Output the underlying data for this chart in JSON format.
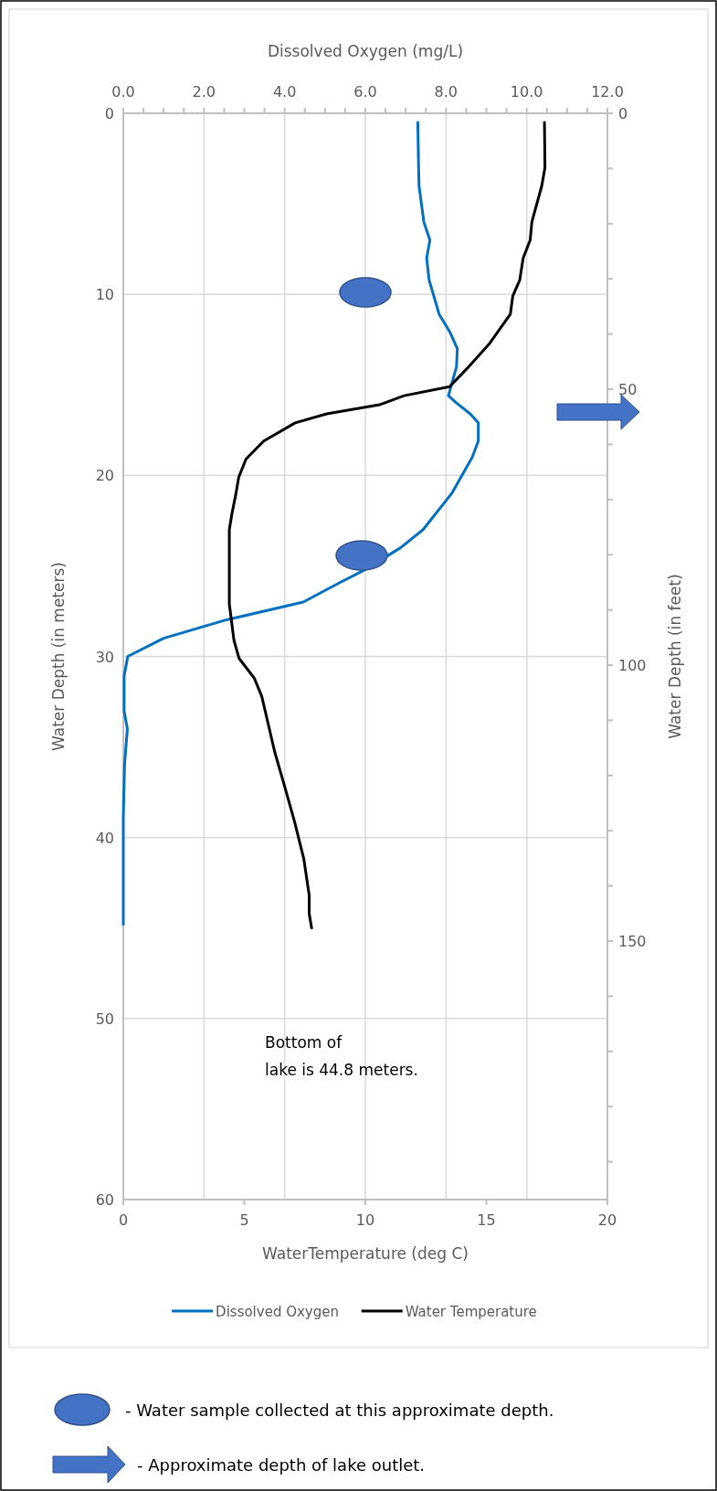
{
  "chart_data": {
    "type": "line",
    "orientation": "horizontal",
    "x2label": "Dissolved Oxygen (mg/L)",
    "xlabel": "WaterTemperature (deg C)",
    "ylabel": "Water Depth (in meters)",
    "y2label": "Water Depth (in feet)",
    "xlim": [
      0,
      20
    ],
    "xticks": [
      0,
      5,
      10,
      15,
      20
    ],
    "x2lim": [
      0,
      12
    ],
    "x2ticks": [
      "0.0",
      {
        "value": 0.5,
        "label": null
      },
      {
        "value": 1,
        "label": null
      },
      {
        "value": 1.5,
        "label": null
      },
      {
        "value": 2,
        "label": "2.0"
      },
      {
        "value": 2.5,
        "label": null
      },
      {
        "value": 3,
        "label": null
      },
      {
        "value": 3.5,
        "label": null
      },
      {
        "value": 4,
        "label": "4.0"
      },
      {
        "value": 4.5,
        "label": null
      },
      {
        "value": 5,
        "label": null
      },
      {
        "value": 5.5,
        "label": null
      },
      {
        "value": 6,
        "label": "6.0"
      },
      {
        "value": 6.5,
        "label": null
      },
      {
        "value": 7,
        "label": null
      },
      {
        "value": 7.5,
        "label": null
      },
      {
        "value": 8,
        "label": "8.0"
      },
      {
        "value": 8.5,
        "label": null
      },
      {
        "value": 9,
        "label": null
      },
      {
        "value": 9.5,
        "label": null
      },
      {
        "value": 10,
        "label": "10.0"
      },
      {
        "value": 10.5,
        "label": null
      },
      {
        "value": 11,
        "label": null
      },
      {
        "value": 11.5,
        "label": null
      },
      {
        "value": 12,
        "label": "12.0"
      }
    ],
    "ylim": [
      60,
      0
    ],
    "yticks": [
      0,
      10,
      20,
      30,
      40,
      50,
      60
    ],
    "y2lim": [
      196.85,
      0
    ],
    "y2ticks": [
      0,
      {
        "value": 10,
        "label": null
      },
      {
        "value": 20,
        "label": null
      },
      {
        "value": 30,
        "label": null
      },
      {
        "value": 40,
        "label": null
      },
      50,
      {
        "value": 60,
        "label": null
      },
      {
        "value": 70,
        "label": null
      },
      {
        "value": 80,
        "label": null
      },
      {
        "value": 90,
        "label": null
      },
      100,
      {
        "value": 110,
        "label": null
      },
      {
        "value": 120,
        "label": null
      },
      {
        "value": 130,
        "label": null
      },
      {
        "value": 140,
        "label": null
      },
      150,
      {
        "value": 160,
        "label": null
      },
      {
        "value": 170,
        "label": null
      },
      {
        "value": 180,
        "label": null
      },
      {
        "value": 190,
        "label": null
      }
    ],
    "grid": true,
    "legend": "bottom",
    "line_style": "solid",
    "series": [
      {
        "name": "Dissolved Oxygen",
        "color": "#0070c0",
        "axis": "x2",
        "x": [
          0.5,
          3,
          4,
          6,
          7,
          8,
          9.2,
          11.1,
          12.1,
          13,
          14,
          15.6,
          16,
          16.6,
          17.1,
          18.1,
          19,
          21,
          23,
          24,
          25.2,
          26,
          27,
          28,
          29,
          30,
          31.1,
          33,
          34,
          36,
          38.9,
          44.8
        ],
        "values": [
          7.3,
          7.32,
          7.33,
          7.45,
          7.6,
          7.52,
          7.58,
          7.83,
          8.1,
          8.28,
          8.26,
          8.06,
          8.26,
          8.6,
          8.8,
          8.8,
          8.65,
          8.14,
          7.43,
          6.87,
          6.0,
          5.3,
          4.46,
          2.52,
          1.0,
          0.11,
          0.02,
          0.02,
          0.1,
          0.03,
          0,
          0
        ]
      },
      {
        "name": "Water Temperature",
        "color": "#000000",
        "x": [
          0.5,
          3,
          4,
          6,
          7,
          8,
          9.2,
          10.1,
          11.1,
          12.7,
          14.1,
          15.1,
          15.6,
          16.1,
          16.6,
          17.1,
          18.1,
          19.1,
          20.1,
          21.1,
          22.1,
          23,
          27.1,
          29.1,
          30.1,
          31.2,
          32.2,
          35.3,
          37.2,
          39.1,
          41.2,
          43.2,
          44.2,
          45
        ],
        "values": [
          17.4,
          17.42,
          17.29,
          16.88,
          16.81,
          16.52,
          16.38,
          16.09,
          15.99,
          15.14,
          14.2,
          13.48,
          11.6,
          10.58,
          8.4,
          7.1,
          5.8,
          5.07,
          4.77,
          4.64,
          4.49,
          4.38,
          4.38,
          4.57,
          4.78,
          5.41,
          5.72,
          6.26,
          6.67,
          7.07,
          7.46,
          7.68,
          7.68,
          7.78
        ]
      }
    ],
    "annotations": [
      "Bottom of\nlake is 44.8 meters.",
      "-  Water sample collected at this approximate depth.",
      "-  Approximate depth of lake outlet."
    ]
  }
}
